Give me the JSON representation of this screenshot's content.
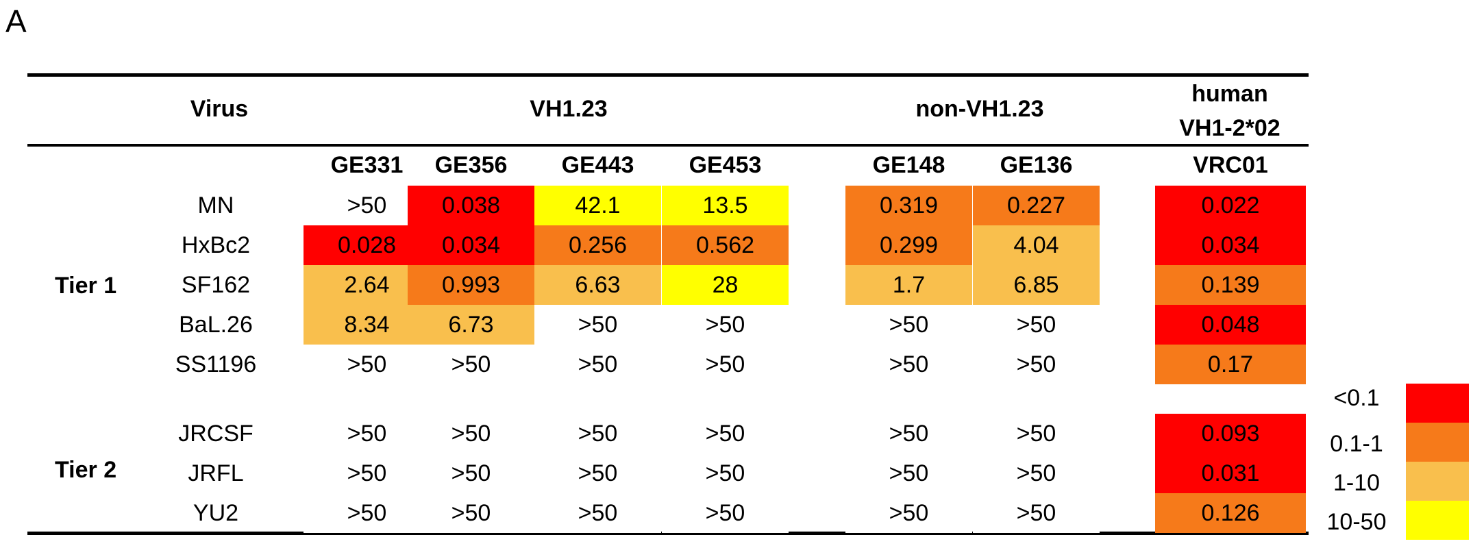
{
  "panel_label": "A",
  "colors": {
    "lt0_1": "#ff0000",
    "0_1-1": "#f67a1a",
    "1-10": "#f9bf4d",
    "10-50": "#ffff00",
    "none": "#ffffff"
  },
  "headers": {
    "virus": "Virus",
    "groups": [
      "VH1.23",
      "non-VH1.23",
      "human",
      "VH1-2*02"
    ],
    "columns": [
      "GE331",
      "GE356",
      "GE443",
      "GE453",
      "GE148",
      "GE136",
      "VRC01"
    ]
  },
  "tiers": [
    "Tier 1",
    "Tier 2"
  ],
  "rows": [
    {
      "virus": "MN",
      "cells": [
        {
          "v": ">50",
          "c": "none"
        },
        {
          "v": "0.038",
          "c": "lt0_1"
        },
        {
          "v": "42.1",
          "c": "10-50"
        },
        {
          "v": "13.5",
          "c": "10-50"
        },
        {
          "v": "0.319",
          "c": "0_1-1"
        },
        {
          "v": "0.227",
          "c": "0_1-1"
        },
        {
          "v": "0.022",
          "c": "lt0_1"
        }
      ]
    },
    {
      "virus": "HxBc2",
      "cells": [
        {
          "v": "0.028",
          "c": "lt0_1"
        },
        {
          "v": "0.034",
          "c": "lt0_1"
        },
        {
          "v": "0.256",
          "c": "0_1-1"
        },
        {
          "v": "0.562",
          "c": "0_1-1"
        },
        {
          "v": "0.299",
          "c": "0_1-1"
        },
        {
          "v": "4.04",
          "c": "1-10"
        },
        {
          "v": "0.034",
          "c": "lt0_1"
        }
      ]
    },
    {
      "virus": "SF162",
      "cells": [
        {
          "v": "2.64",
          "c": "1-10"
        },
        {
          "v": "0.993",
          "c": "0_1-1"
        },
        {
          "v": "6.63",
          "c": "1-10"
        },
        {
          "v": "28",
          "c": "10-50"
        },
        {
          "v": "1.7",
          "c": "1-10"
        },
        {
          "v": "6.85",
          "c": "1-10"
        },
        {
          "v": "0.139",
          "c": "0_1-1"
        }
      ]
    },
    {
      "virus": "BaL.26",
      "cells": [
        {
          "v": "8.34",
          "c": "1-10"
        },
        {
          "v": "6.73",
          "c": "1-10"
        },
        {
          "v": ">50",
          "c": "none"
        },
        {
          "v": ">50",
          "c": "none"
        },
        {
          "v": ">50",
          "c": "none"
        },
        {
          "v": ">50",
          "c": "none"
        },
        {
          "v": "0.048",
          "c": "lt0_1"
        }
      ]
    },
    {
      "virus": "SS1196",
      "cells": [
        {
          "v": ">50",
          "c": "none"
        },
        {
          "v": ">50",
          "c": "none"
        },
        {
          "v": ">50",
          "c": "none"
        },
        {
          "v": ">50",
          "c": "none"
        },
        {
          "v": ">50",
          "c": "none"
        },
        {
          "v": ">50",
          "c": "none"
        },
        {
          "v": "0.17",
          "c": "0_1-1"
        }
      ]
    },
    {
      "virus": "JRCSF",
      "cells": [
        {
          "v": ">50",
          "c": "none"
        },
        {
          "v": ">50",
          "c": "none"
        },
        {
          "v": ">50",
          "c": "none"
        },
        {
          "v": ">50",
          "c": "none"
        },
        {
          "v": ">50",
          "c": "none"
        },
        {
          "v": ">50",
          "c": "none"
        },
        {
          "v": "0.093",
          "c": "lt0_1"
        }
      ]
    },
    {
      "virus": "JRFL",
      "cells": [
        {
          "v": ">50",
          "c": "none"
        },
        {
          "v": ">50",
          "c": "none"
        },
        {
          "v": ">50",
          "c": "none"
        },
        {
          "v": ">50",
          "c": "none"
        },
        {
          "v": ">50",
          "c": "none"
        },
        {
          "v": ">50",
          "c": "none"
        },
        {
          "v": "0.031",
          "c": "lt0_1"
        }
      ]
    },
    {
      "virus": "YU2",
      "cells": [
        {
          "v": ">50",
          "c": "none"
        },
        {
          "v": ">50",
          "c": "none"
        },
        {
          "v": ">50",
          "c": "none"
        },
        {
          "v": ">50",
          "c": "none"
        },
        {
          "v": ">50",
          "c": "none"
        },
        {
          "v": ">50",
          "c": "none"
        },
        {
          "v": "0.126",
          "c": "0_1-1"
        }
      ]
    }
  ],
  "legend": [
    {
      "label": "<0.1",
      "c": "lt0_1"
    },
    {
      "label": "0.1-1",
      "c": "0_1-1"
    },
    {
      "label": "1-10",
      "c": "1-10"
    },
    {
      "label": "10-50",
      "c": "10-50"
    }
  ]
}
